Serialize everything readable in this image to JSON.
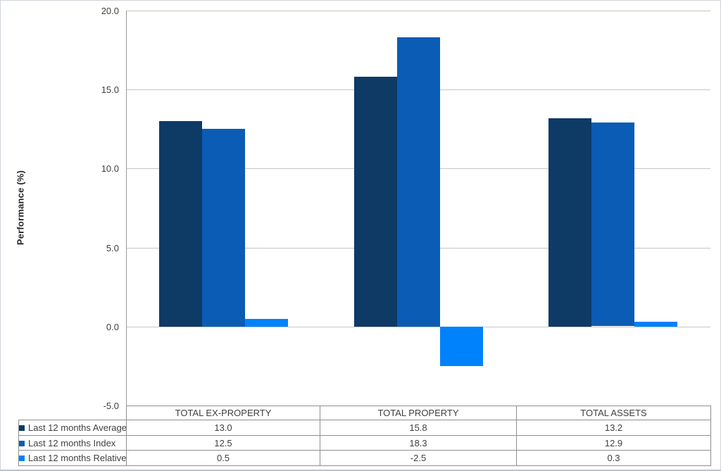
{
  "chart_data": {
    "type": "bar",
    "categories": [
      "TOTAL EX-PROPERTY",
      "TOTAL PROPERTY",
      "TOTAL ASSETS"
    ],
    "series": [
      {
        "name": "Last 12 months Average",
        "values": [
          13.0,
          15.8,
          13.2
        ],
        "color": "#0e3a66"
      },
      {
        "name": "Last 12 months Index",
        "values": [
          12.5,
          18.3,
          12.9
        ],
        "color": "#0a5cb4"
      },
      {
        "name": "Last 12 months Relative",
        "values": [
          0.5,
          -2.5,
          0.3
        ],
        "color": "#0082fc"
      }
    ],
    "title": "",
    "xlabel": "",
    "ylabel": "Performance (%)",
    "ylim": [
      -5.0,
      20.0
    ],
    "ytick_step": 5.0,
    "ytick_labels": [
      "20.0",
      "15.0",
      "10.0",
      "5.0",
      "0.0",
      "-5.0"
    ],
    "grid": true,
    "legend_position": "data-table-left",
    "value_decimals": 1
  },
  "colors": {
    "grid": "#c6c6c6",
    "axis": "#9a9a9a",
    "table_border": "#8f8f8f",
    "text": "#3f3f3f",
    "background": "#ffffff"
  }
}
